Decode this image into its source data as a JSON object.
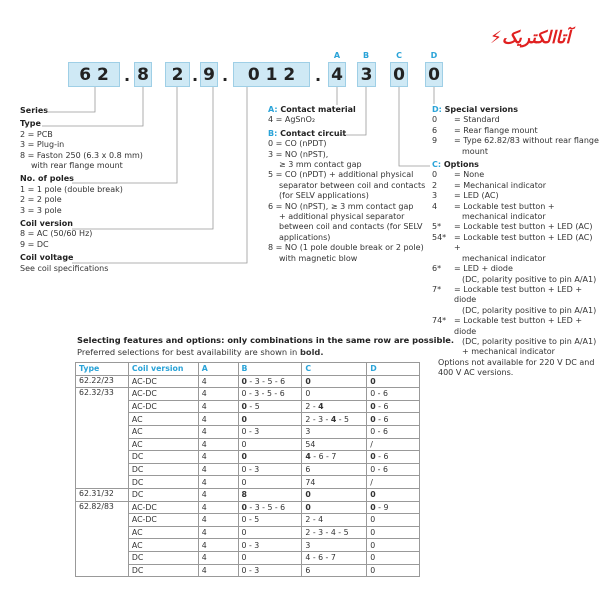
{
  "logo": {
    "text": "آتاالکتریک"
  },
  "code": {
    "boxes": [
      "6 2",
      "8",
      "2",
      "9",
      "0 1 2",
      "4",
      "3",
      "0",
      "0"
    ],
    "dot": ".",
    "letters": [
      "A",
      "B",
      "C",
      "D"
    ]
  },
  "left": {
    "series": "Series",
    "type": {
      "h": "Type",
      "items": [
        "2 = PCB",
        "3 = Plug-in",
        "8 = Faston 250 (6.3 x 0.8 mm)",
        "with rear flange mount"
      ]
    },
    "poles": {
      "h": "No. of poles",
      "items": [
        "1 = 1 pole (double break)",
        "2 = 2 pole",
        "3 = 3 pole"
      ]
    },
    "coil": {
      "h": "Coil version",
      "items": [
        "8 = AC (50/60 Hz)",
        "9 = DC"
      ]
    },
    "voltage": {
      "h": "Coil voltage",
      "items": [
        "See coil specifications"
      ]
    }
  },
  "mid": {
    "a": {
      "l": "A:",
      "h": "Contact material",
      "items": [
        "4 = AgSnO₂"
      ]
    },
    "b": {
      "l": "B:",
      "h": "Contact circuit",
      "items": [
        "0 = CO (nPDT)",
        "3 = NO (nPST),",
        "≥ 3 mm contact gap",
        "5 = CO (nPDT) + additional physical",
        "separator between coil and contacts",
        "(for SELV applications)",
        "6 = NO (nPST), ≥ 3 mm contact gap",
        "+ additional physical separator",
        "between coil and contacts (for SELV",
        "applications)",
        "8 = NO (1 pole double break or 2 pole)",
        "with magnetic blow"
      ]
    }
  },
  "right": {
    "d": {
      "l": "D:",
      "h": "Special versions",
      "items": [
        [
          "0",
          "= Standard"
        ],
        [
          "6",
          "= Rear flange mount"
        ],
        [
          "9",
          "= Type 62.82/83 without rear flange"
        ],
        [
          "",
          "mount"
        ]
      ]
    },
    "c": {
      "l": "C:",
      "h": "Options",
      "items": [
        [
          "0",
          "= None"
        ],
        [
          "2",
          "= Mechanical indicator"
        ],
        [
          "3",
          "= LED (AC)"
        ],
        [
          "4",
          "= Lockable test button +"
        ],
        [
          "",
          "mechanical indicator"
        ],
        [
          "5*",
          "= Lockable test button + LED (AC)"
        ],
        [
          "54*",
          "= Lockable test button + LED (AC) +"
        ],
        [
          "",
          "mechanical indicator"
        ],
        [
          "6*",
          "= LED + diode"
        ],
        [
          "",
          "(DC, polarity positive to pin A/A1)"
        ],
        [
          "7*",
          "= Lockable test button + LED + diode"
        ],
        [
          "",
          "(DC, polarity positive to pin A/A1)"
        ],
        [
          "74*",
          "= Lockable test button + LED + diode"
        ],
        [
          "",
          "(DC, polarity positive to pin A/A1)"
        ],
        [
          "",
          "+ mechanical indicator"
        ]
      ]
    },
    "note": [
      "Options not available for 220 V DC and",
      "400 V AC versions."
    ]
  },
  "table": {
    "title": "Selecting features and options: only combinations in the same row are possible.",
    "subtitle": "Preferred selections for best availability are shown in ",
    "subtitle_bold": "bold.",
    "headers": [
      "Type",
      "Coil version",
      "A",
      "B",
      "C",
      "D"
    ],
    "groups": [
      {
        "type": "62.22/23",
        "rows": [
          [
            "AC-DC",
            "4",
            [
              [
                "0",
                1
              ],
              [
                " - 3 - 5 - 6",
                0
              ]
            ],
            [
              [
                "0",
                1
              ]
            ],
            [
              [
                "0",
                1
              ]
            ]
          ]
        ]
      },
      {
        "type": "62.32/33",
        "rows": [
          [
            "AC-DC",
            "4",
            [
              [
                "0 - 3 - 5 - 6",
                0
              ]
            ],
            [
              [
                "0",
                0
              ]
            ],
            [
              [
                "0 - 6",
                0
              ]
            ]
          ],
          [
            "AC-DC",
            "4",
            [
              [
                "0",
                1
              ],
              [
                " - 5",
                0
              ]
            ],
            [
              [
                "2 - ",
                0
              ],
              [
                "4",
                1
              ]
            ],
            [
              [
                "0",
                1
              ],
              [
                " - 6",
                0
              ]
            ]
          ],
          [
            "AC",
            "4",
            [
              [
                "0",
                1
              ]
            ],
            [
              [
                "2 - 3 - ",
                0
              ],
              [
                "4",
                1
              ],
              [
                " - 5",
                0
              ]
            ],
            [
              [
                "0",
                1
              ],
              [
                " - 6",
                0
              ]
            ]
          ],
          [
            "AC",
            "4",
            [
              [
                "0 - 3",
                0
              ]
            ],
            [
              [
                "3",
                0
              ]
            ],
            [
              [
                "0 - 6",
                0
              ]
            ]
          ],
          [
            "AC",
            "4",
            [
              [
                "0",
                0
              ]
            ],
            [
              [
                "54",
                0
              ]
            ],
            [
              [
                "/",
                0
              ]
            ]
          ],
          [
            "DC",
            "4",
            [
              [
                "0",
                1
              ]
            ],
            [
              [
                "4",
                1
              ],
              [
                " - 6 - 7",
                0
              ]
            ],
            [
              [
                "0",
                1
              ],
              [
                " - 6",
                0
              ]
            ]
          ],
          [
            "DC",
            "4",
            [
              [
                "0 - 3",
                0
              ]
            ],
            [
              [
                "6",
                0
              ]
            ],
            [
              [
                "0 - 6",
                0
              ]
            ]
          ],
          [
            "DC",
            "4",
            [
              [
                "0",
                0
              ]
            ],
            [
              [
                "74",
                0
              ]
            ],
            [
              [
                "/",
                0
              ]
            ]
          ]
        ]
      },
      {
        "type": "62.31/32",
        "rows": [
          [
            "DC",
            "4",
            [
              [
                "8",
                1
              ]
            ],
            [
              [
                "0",
                1
              ]
            ],
            [
              [
                "0",
                1
              ]
            ]
          ]
        ]
      },
      {
        "type": "62.82/83",
        "rows": [
          [
            "AC-DC",
            "4",
            [
              [
                "0",
                1
              ],
              [
                " - 3 - 5 - 6",
                0
              ]
            ],
            [
              [
                "0",
                1
              ]
            ],
            [
              [
                "0",
                1
              ],
              [
                " - 9",
                0
              ]
            ]
          ],
          [
            "AC-DC",
            "4",
            [
              [
                "0 - 5",
                0
              ]
            ],
            [
              [
                "2 - 4",
                0
              ]
            ],
            [
              [
                "0",
                0
              ]
            ]
          ],
          [
            "AC",
            "4",
            [
              [
                "0",
                0
              ]
            ],
            [
              [
                "2 - 3 - 4 - 5",
                0
              ]
            ],
            [
              [
                "0",
                0
              ]
            ]
          ],
          [
            "AC",
            "4",
            [
              [
                "0 - 3",
                0
              ]
            ],
            [
              [
                "3",
                0
              ]
            ],
            [
              [
                "0",
                0
              ]
            ]
          ],
          [
            "DC",
            "4",
            [
              [
                "0",
                0
              ]
            ],
            [
              [
                "4 - 6 - 7",
                0
              ]
            ],
            [
              [
                "0",
                0
              ]
            ]
          ],
          [
            "DC",
            "4",
            [
              [
                "0 - 3",
                0
              ]
            ],
            [
              [
                "6",
                0
              ]
            ],
            [
              [
                "0",
                0
              ]
            ]
          ]
        ]
      }
    ]
  },
  "colors": {
    "accent": "#2aa3d8",
    "box": "#cfe9f5",
    "logo": "#e02020"
  }
}
